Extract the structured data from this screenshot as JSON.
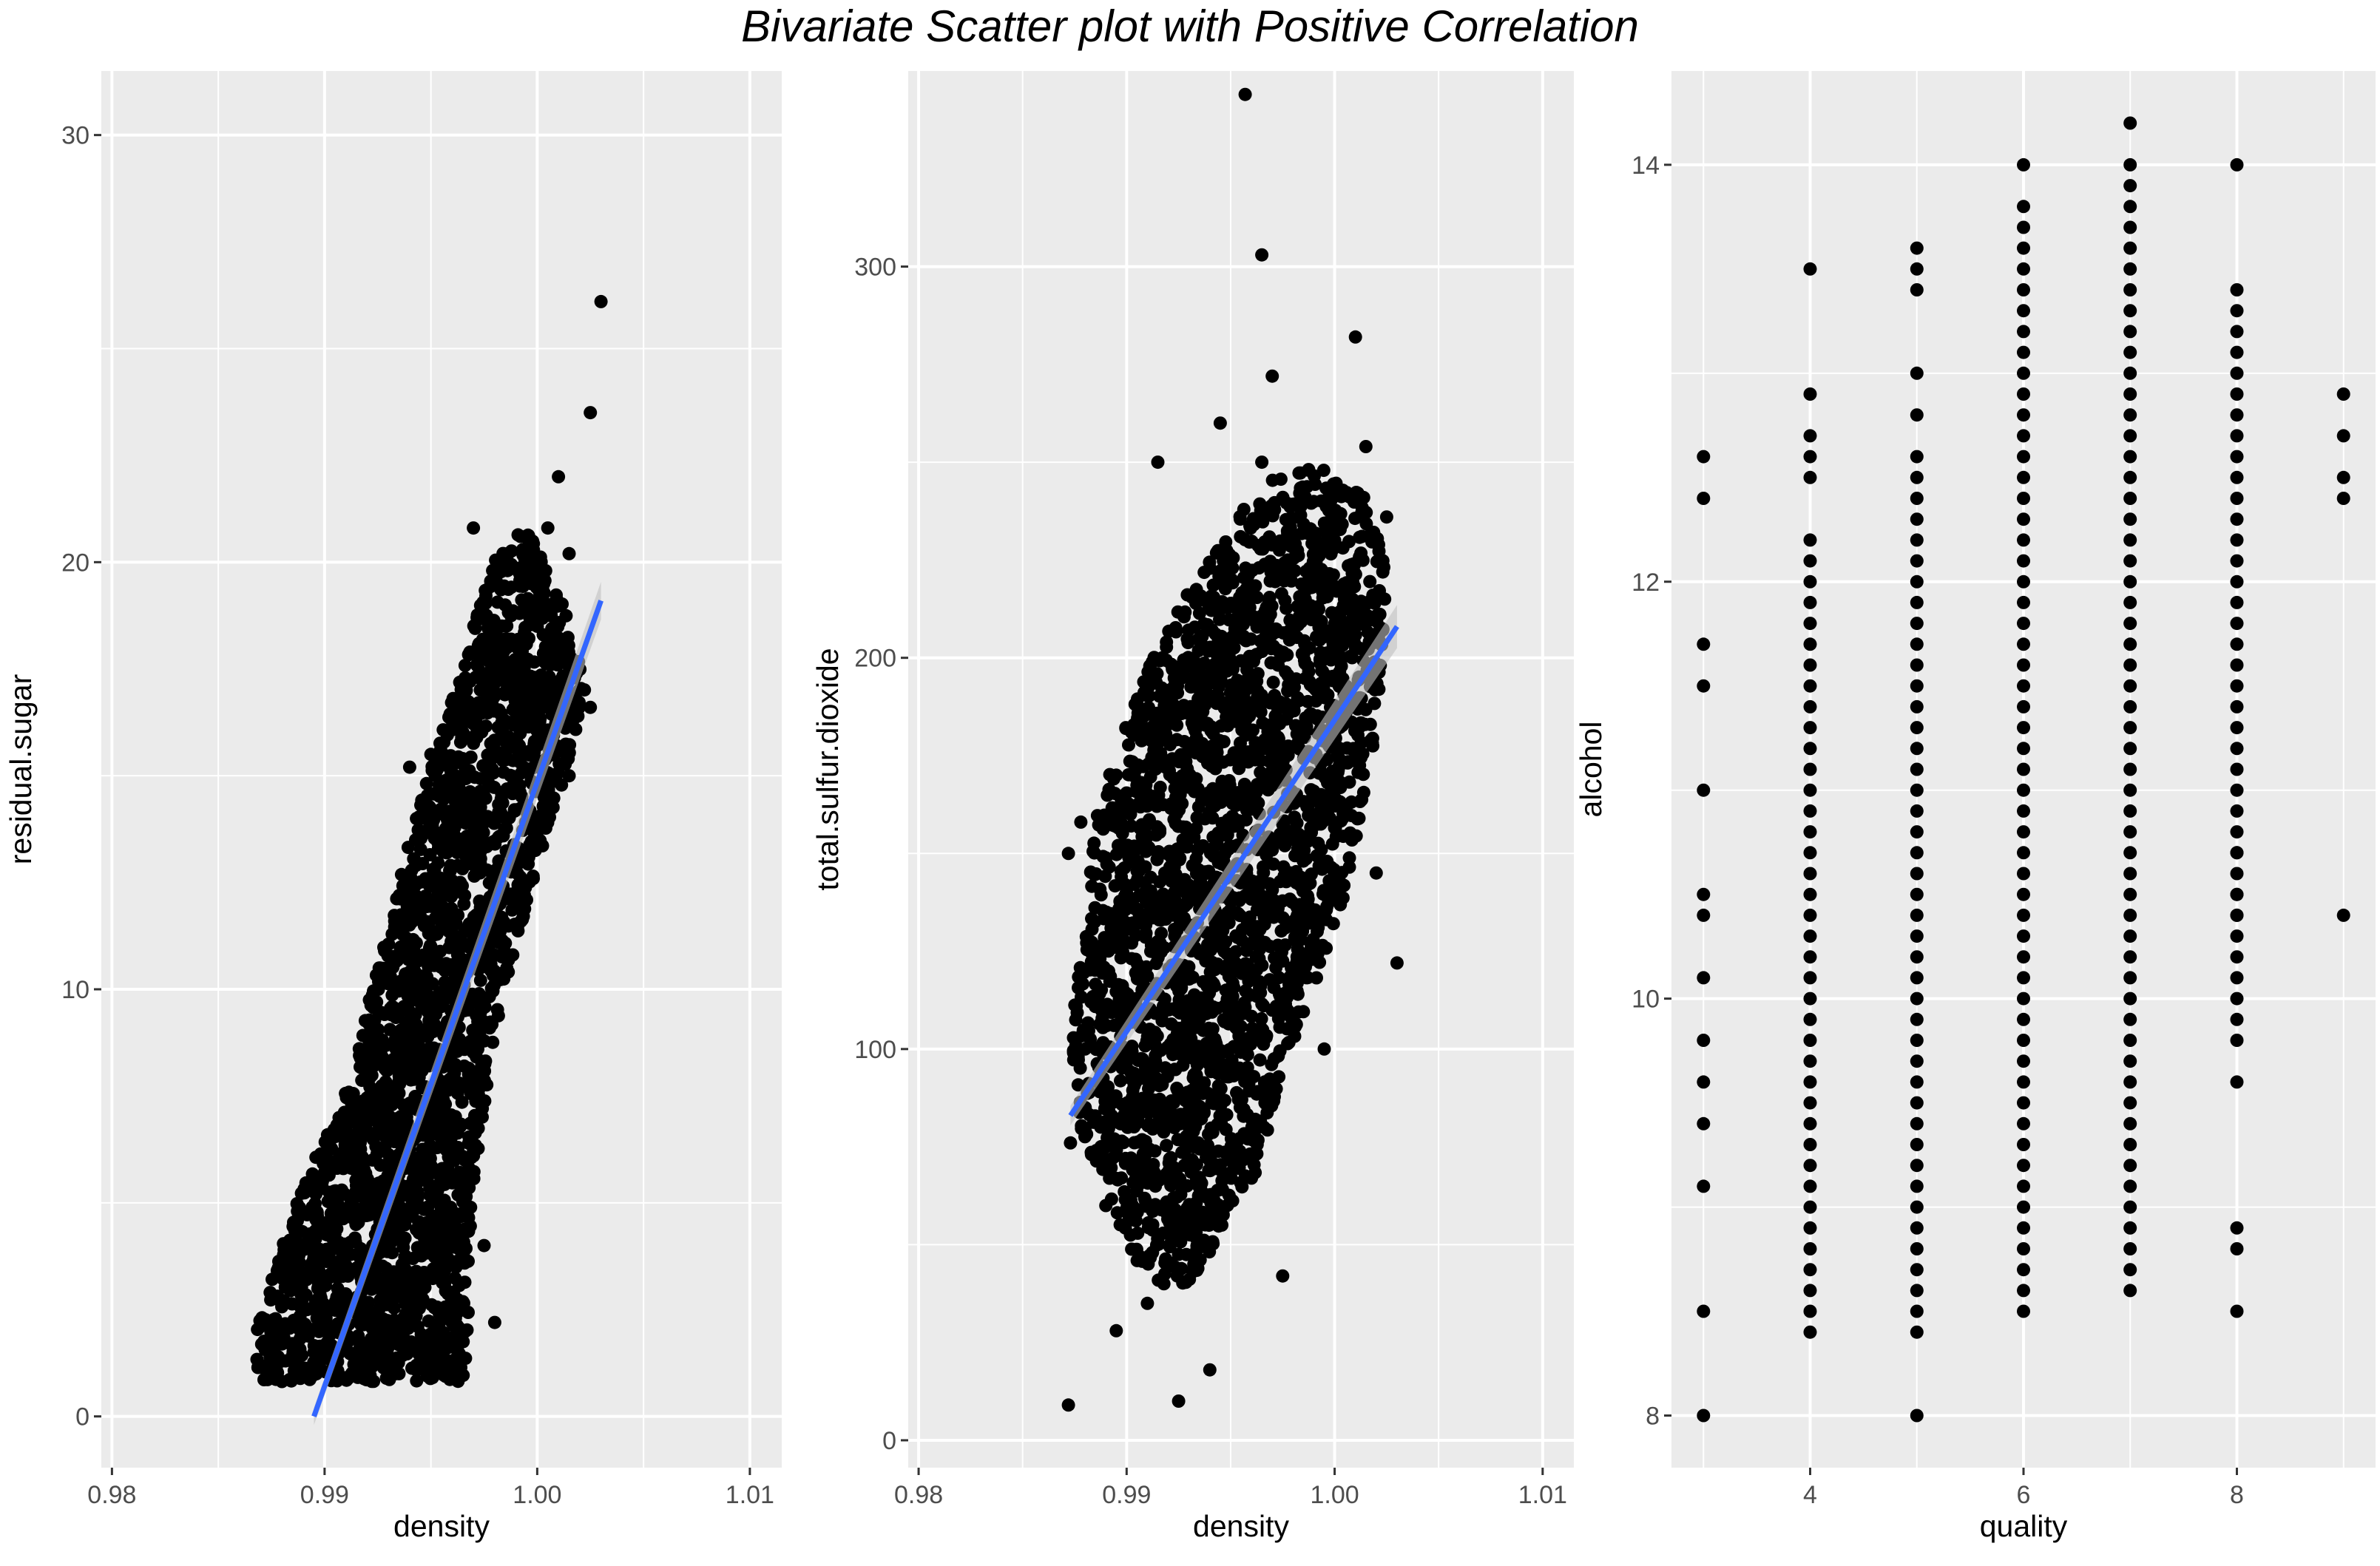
{
  "title": "Bivariate Scatter plot with Positive Correlation",
  "style": {
    "panel_bg": "#ebebeb",
    "grid_color": "#ffffff",
    "point_color": "#000000",
    "fit_line_color": "#3366ff",
    "fit_band_color": "#bfbfbf"
  },
  "chart_data": [
    {
      "type": "scatter",
      "xlabel": "density",
      "ylabel": "residual.sugar",
      "xlim": [
        0.9795,
        1.0115
      ],
      "ylim": [
        -1.2,
        31.5
      ],
      "xticks": [
        0.98,
        0.99,
        1.0,
        1.01
      ],
      "xtick_labels": [
        "0.98",
        "0.99",
        "1.00",
        "1.01"
      ],
      "yticks": [
        0,
        10,
        20,
        30
      ],
      "ytick_labels": [
        "0",
        "10",
        "20",
        "30"
      ],
      "grid": true,
      "fit_line": {
        "x": [
          0.9895,
          1.003
        ],
        "y": [
          0.0,
          19.1
        ],
        "band": 0.2
      },
      "points": [
        [
          1.003,
          26.1
        ],
        [
          1.0025,
          23.5
        ],
        [
          1.001,
          22.0
        ],
        [
          0.997,
          20.8
        ],
        [
          1.0005,
          20.8
        ],
        [
          1.0015,
          20.2
        ],
        [
          1.0,
          18.5
        ],
        [
          0.998,
          17.5
        ],
        [
          0.995,
          15.5
        ],
        [
          0.994,
          15.2
        ],
        [
          0.9965,
          16.5
        ],
        [
          0.9975,
          14.0
        ],
        [
          0.996,
          12.5
        ],
        [
          0.997,
          10.5
        ],
        [
          0.995,
          11.0
        ],
        [
          0.996,
          9.0
        ],
        [
          0.994,
          8.0
        ],
        [
          0.995,
          7.0
        ],
        [
          0.993,
          6.5
        ],
        [
          0.992,
          5.0
        ],
        [
          0.9905,
          3.5
        ],
        [
          0.991,
          2.5
        ],
        [
          0.99,
          2.0
        ],
        [
          0.9895,
          1.5
        ],
        [
          0.988,
          1.3
        ],
        [
          0.987,
          1.2
        ],
        [
          0.9935,
          1.0
        ],
        [
          0.995,
          1.5
        ],
        [
          0.998,
          2.2
        ],
        [
          0.997,
          6.2
        ],
        [
          0.999,
          13.0
        ],
        [
          1.0015,
          15.0
        ],
        [
          1.0025,
          16.6
        ],
        [
          0.9975,
          4.0
        ],
        [
          0.9885,
          3.0
        ]
      ],
      "cloud": {
        "path": [
          [
            0.9868,
            0.8
          ],
          [
            0.9868,
            2.0
          ],
          [
            0.9875,
            3.2
          ],
          [
            0.989,
            5.5
          ],
          [
            0.9905,
            7.0
          ],
          [
            0.9925,
            10.5
          ],
          [
            0.994,
            13.5
          ],
          [
            0.9955,
            16.0
          ],
          [
            0.997,
            18.5
          ],
          [
            0.9982,
            20.3
          ],
          [
            0.9995,
            20.8
          ],
          [
            1.0013,
            19.0
          ],
          [
            1.0023,
            17.0
          ],
          [
            1.001,
            14.5
          ],
          [
            0.9995,
            12.0
          ],
          [
            0.998,
            9.0
          ],
          [
            0.997,
            5.5
          ],
          [
            0.9968,
            2.0
          ],
          [
            0.9965,
            0.8
          ]
        ],
        "density_points": 2600
      }
    },
    {
      "type": "scatter",
      "xlabel": "density",
      "ylabel": "total.sulfur.dioxide",
      "xlim": [
        0.9795,
        1.0115
      ],
      "ylim": [
        -7,
        350
      ],
      "xticks": [
        0.98,
        0.99,
        1.0,
        1.01
      ],
      "xtick_labels": [
        "0.98",
        "0.99",
        "1.00",
        "1.01"
      ],
      "yticks": [
        0,
        100,
        200,
        300
      ],
      "ytick_labels": [
        "0",
        "100",
        "200",
        "300"
      ],
      "grid": true,
      "fit_line": {
        "x": [
          0.9873,
          1.003
        ],
        "y": [
          83,
          208
        ],
        "band": 2.5
      },
      "points": [
        [
          0.9957,
          344
        ],
        [
          0.9965,
          303
        ],
        [
          1.001,
          282
        ],
        [
          0.997,
          272
        ],
        [
          0.9945,
          260
        ],
        [
          1.003,
          122
        ],
        [
          0.9872,
          9
        ],
        [
          0.9925,
          10
        ],
        [
          0.994,
          18
        ],
        [
          0.9895,
          28
        ],
        [
          0.9873,
          76
        ],
        [
          0.9872,
          150
        ],
        [
          0.9878,
          158
        ],
        [
          0.9975,
          42
        ],
        [
          0.9985,
          180
        ],
        [
          0.9965,
          250
        ],
        [
          1.0025,
          236
        ],
        [
          1.0015,
          254
        ],
        [
          0.9915,
          250
        ],
        [
          0.9895,
          170
        ],
        [
          0.988,
          100
        ],
        [
          0.989,
          60
        ],
        [
          1.0,
          230
        ],
        [
          1.002,
          145
        ],
        [
          0.9995,
          100
        ],
        [
          0.991,
          35
        ],
        [
          0.996,
          67
        ]
      ],
      "cloud": {
        "path": [
          [
            0.9873,
            105
          ],
          [
            0.988,
            130
          ],
          [
            0.9885,
            160
          ],
          [
            0.99,
            183
          ],
          [
            0.992,
            210
          ],
          [
            0.994,
            225
          ],
          [
            0.9965,
            245
          ],
          [
            0.999,
            250
          ],
          [
            1.0015,
            242
          ],
          [
            1.0025,
            222
          ],
          [
            1.002,
            180
          ],
          [
            1.0005,
            140
          ],
          [
            0.998,
            100
          ],
          [
            0.996,
            65
          ],
          [
            0.993,
            40
          ],
          [
            0.991,
            40
          ],
          [
            0.9892,
            60
          ],
          [
            0.9878,
            80
          ]
        ],
        "density_points": 2600
      }
    },
    {
      "type": "scatter",
      "xlabel": "quality",
      "ylabel": "alcohol",
      "xlim": [
        2.7,
        9.3
      ],
      "ylim": [
        7.75,
        14.45
      ],
      "xticks": [
        4,
        6,
        8
      ],
      "xtick_labels": [
        "4",
        "6",
        "8"
      ],
      "yticks": [
        8,
        10,
        12,
        14
      ],
      "ytick_labels": [
        "8",
        "10",
        "12",
        "14"
      ],
      "grid": true,
      "minor_x": [
        3,
        5,
        7,
        9
      ],
      "strips": [
        {
          "x": 3,
          "values": [
            8.0,
            8.5,
            9.1,
            9.4,
            9.6,
            9.8,
            10.1,
            10.4,
            10.5,
            11.0,
            11.5,
            11.7,
            12.4,
            12.6
          ]
        },
        {
          "x": 4,
          "from": 8.5,
          "to": 12.2,
          "step": 0.1,
          "extra": [
            8.4,
            12.5,
            12.6,
            12.7,
            12.9,
            13.5
          ]
        },
        {
          "x": 5,
          "from": 8.5,
          "to": 12.5,
          "step": 0.1,
          "extra": [
            8.0,
            8.4,
            12.6,
            12.8,
            13.0,
            13.4,
            13.5,
            13.6
          ]
        },
        {
          "x": 6,
          "from": 8.5,
          "to": 13.8,
          "step": 0.1,
          "extra": [
            14.0
          ]
        },
        {
          "x": 7,
          "from": 8.6,
          "to": 14.05,
          "step": 0.1,
          "extra": [
            14.2
          ]
        },
        {
          "x": 8,
          "from": 9.9,
          "to": 13.4,
          "step": 0.1,
          "extra": [
            8.5,
            8.8,
            8.9,
            9.6,
            9.8,
            10.4,
            10.5,
            10.7,
            14.0
          ]
        },
        {
          "x": 9,
          "values": [
            10.4,
            12.4,
            12.5,
            12.7,
            12.9
          ]
        }
      ]
    }
  ]
}
